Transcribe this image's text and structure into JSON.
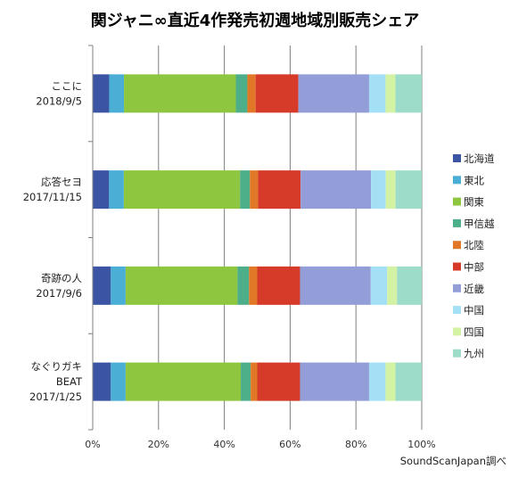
{
  "chart_data": {
    "type": "bar",
    "orientation": "horizontal",
    "stacked": true,
    "percent": true,
    "title": "関ジャニ∞直近4作発売初週地域別販売シェア",
    "source": "SoundScanJapan調べ",
    "categories": [
      {
        "line1": "ここに",
        "line2": "2018/9/5",
        "line3": ""
      },
      {
        "line1": "応答セヨ",
        "line2": "2017/11/15",
        "line3": ""
      },
      {
        "line1": "奇跡の人",
        "line2": "2017/9/6",
        "line3": ""
      },
      {
        "line1": "なぐりガキ",
        "line2": "BEAT",
        "line3": "2017/1/25"
      }
    ],
    "xlim": [
      0,
      100
    ],
    "x_ticks": [
      "0%",
      "20%",
      "40%",
      "60%",
      "80%",
      "100%"
    ],
    "grid": true,
    "legend_position": "right",
    "series": [
      {
        "name": "北海道",
        "color": "#3b55a4",
        "values": [
          5.0,
          5.0,
          5.5,
          5.5
        ]
      },
      {
        "name": "東北",
        "color": "#4aaed5",
        "values": [
          4.5,
          4.5,
          4.5,
          4.5
        ]
      },
      {
        "name": "関東",
        "color": "#8ec63f",
        "values": [
          34.0,
          35.5,
          34.0,
          35.0
        ]
      },
      {
        "name": "甲信越",
        "color": "#4caf8a",
        "values": [
          3.5,
          3.0,
          3.5,
          3.0
        ]
      },
      {
        "name": "北陸",
        "color": "#e07828",
        "values": [
          2.5,
          2.5,
          2.5,
          2.0
        ]
      },
      {
        "name": "中部",
        "color": "#d63b2a",
        "values": [
          13.0,
          13.0,
          13.0,
          13.0
        ]
      },
      {
        "name": "近畿",
        "color": "#939dd8",
        "values": [
          21.5,
          21.5,
          21.5,
          21.0
        ]
      },
      {
        "name": "中国",
        "color": "#a3e0f5",
        "values": [
          5.0,
          4.5,
          5.0,
          5.0
        ]
      },
      {
        "name": "四国",
        "color": "#d3f2a3",
        "values": [
          3.0,
          3.0,
          3.0,
          3.0
        ]
      },
      {
        "name": "九州",
        "color": "#9ddcc8",
        "values": [
          8.0,
          8.0,
          7.5,
          8.0
        ]
      }
    ]
  }
}
